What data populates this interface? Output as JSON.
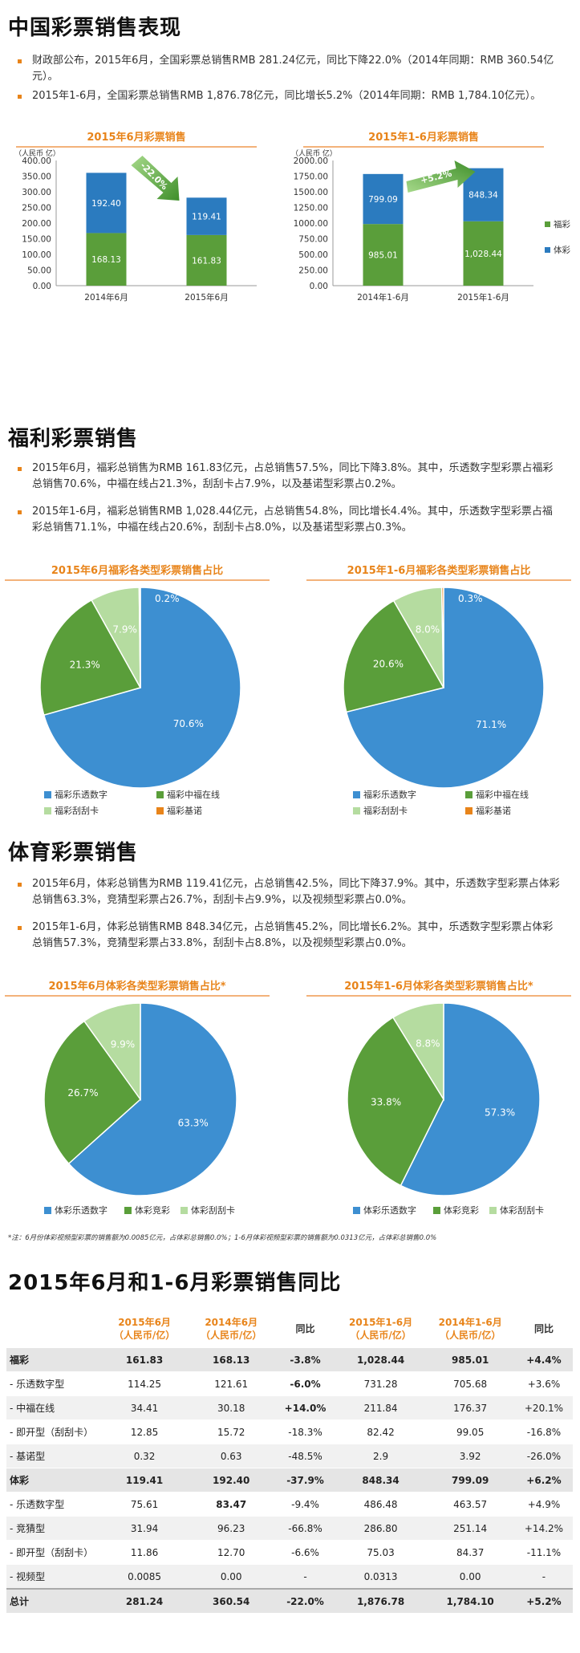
{
  "section1": {
    "title": "中国彩票销售表现",
    "bullets": [
      "财政部公布，2015年6月，全国彩票总销售RMB 281.24亿元，同比下降22.0%（2014年同期：RMB 360.54亿元）。",
      "2015年1-6月，全国彩票总销售RMB 1,876.78亿元，同比增长5.2%（2014年同期：RMB 1,784.10亿元）。"
    ]
  },
  "section2": {
    "title": "福利彩票销售",
    "bullets": [
      "2015年6月，福彩总销售为RMB 161.83亿元，占总销售57.5%，同比下降3.8%。其中，乐透数字型彩票占福彩总销售70.6%，中福在线占21.3%，刮刮卡占7.9%，以及基诺型彩票占0.2%。",
      "2015年1-6月，福彩总销售RMB 1,028.44亿元，占总销售54.8%，同比增长4.4%。其中，乐透数字型彩票占福彩总销售71.1%，中福在线占20.6%，刮刮卡占8.0%，以及基诺型彩票占0.3%。"
    ]
  },
  "section3": {
    "title": "体育彩票销售",
    "bullets": [
      "2015年6月，体彩总销售为RMB 119.41亿元，占总销售42.5%，同比下降37.9%。其中，乐透数字型彩票占体彩总销售63.3%，竞猜型彩票占26.7%，刮刮卡占9.9%，以及视频型彩票占0.0%。",
      "2015年1-6月，体彩总销售RMB 848.34亿元，占总销售45.2%，同比增长6.2%。其中，乐透数字型彩票占体彩总销售57.3%，竞猜型彩票占33.8%，刮刮卡占8.8%，以及视频型彩票占0.0%。"
    ],
    "note": "*注：6月份体彩视频型彩票的销售额为0.0085亿元，占体彩总销售0.0%；1-6月体彩视频型彩票的销售额为0.0313亿元，占体彩总销售0.0%"
  },
  "colors": {
    "welfare": "#5a9e3a",
    "sports": "#2b7bbf",
    "lotto": "#3d8fd1",
    "online": "#5a9e3a",
    "scratch": "#b5dca0",
    "keno": "#e8841a",
    "accent": "#e8841a"
  },
  "chart_data": [
    {
      "type": "bar",
      "stacked": true,
      "title": "2015年6月彩票销售",
      "ylabel": "（人民币 亿）",
      "categories": [
        "2014年6月",
        "2015年6月"
      ],
      "series": [
        {
          "name": "福彩",
          "values": [
            168.13,
            161.83
          ]
        },
        {
          "name": "体彩",
          "values": [
            192.4,
            119.41
          ]
        }
      ],
      "ylim": [
        0,
        400
      ],
      "yticks": [
        "0.00",
        "50.00",
        "100.00",
        "150.00",
        "200.00",
        "250.00",
        "300.00",
        "350.00",
        "400.00"
      ],
      "annotation": "-22.0%"
    },
    {
      "type": "bar",
      "stacked": true,
      "title": "2015年1-6月彩票销售",
      "ylabel": "（人民币 亿）",
      "categories": [
        "2014年1-6月",
        "2015年1-6月"
      ],
      "series": [
        {
          "name": "福彩",
          "values": [
            985.01,
            1028.44
          ]
        },
        {
          "name": "体彩",
          "values": [
            799.09,
            848.34
          ]
        }
      ],
      "ylim": [
        0,
        2000
      ],
      "yticks": [
        "0.00",
        "250.00",
        "500.00",
        "750.00",
        "1000.00",
        "1250.00",
        "1500.00",
        "1750.00",
        "2000.00"
      ],
      "labels": {
        "welfare": [
          "985.01",
          "1,028.44"
        ],
        "sports": [
          "799.09",
          "848.34"
        ]
      },
      "annotation": "+5.2%",
      "legend": [
        "福彩",
        "体彩"
      ]
    },
    {
      "type": "pie",
      "title": "2015年6月福彩各类型彩票销售占比",
      "slices": [
        {
          "name": "福彩乐透数字",
          "value": 70.6
        },
        {
          "name": "福彩中福在线",
          "value": 21.3
        },
        {
          "name": "福彩刮刮卡",
          "value": 7.9
        },
        {
          "name": "福彩基诺",
          "value": 0.2
        }
      ],
      "labels": [
        "70.6%",
        "21.3%",
        "7.9%",
        "0.2%"
      ]
    },
    {
      "type": "pie",
      "title": "2015年1-6月福彩各类型彩票销售占比",
      "slices": [
        {
          "name": "福彩乐透数字",
          "value": 71.1
        },
        {
          "name": "福彩中福在线",
          "value": 20.6
        },
        {
          "name": "福彩刮刮卡",
          "value": 8.0
        },
        {
          "name": "福彩基诺",
          "value": 0.3
        }
      ],
      "labels": [
        "71.1%",
        "20.6%",
        "8.0%",
        "0.3%"
      ]
    },
    {
      "type": "pie",
      "title": "2015年6月体彩各类型彩票销售占比*",
      "slices": [
        {
          "name": "体彩乐透数字",
          "value": 63.3
        },
        {
          "name": "体彩竞彩",
          "value": 26.7
        },
        {
          "name": "体彩刮刮卡",
          "value": 9.9
        }
      ],
      "labels": [
        "63.3%",
        "26.7%",
        "9.9%"
      ]
    },
    {
      "type": "pie",
      "title": "2015年1-6月体彩各类型彩票销售占比*",
      "slices": [
        {
          "name": "体彩乐透数字",
          "value": 57.3
        },
        {
          "name": "体彩竞彩",
          "value": 33.8
        },
        {
          "name": "体彩刮刮卡",
          "value": 8.8
        }
      ],
      "labels": [
        "57.3%",
        "33.8%",
        "8.8%"
      ]
    },
    {
      "type": "table",
      "title": "2015年6月和1-6月彩票销售同比",
      "headers": [
        "",
        "2015年6月\n（人民币/亿）",
        "2014年6月\n（人民币/亿）",
        "同比",
        "2015年1-6月\n（人民币/亿）",
        "2014年1-6月\n（人民币/亿）",
        "同比"
      ],
      "rows": [
        {
          "cls": "grp",
          "cells": [
            "福彩",
            "161.83",
            "168.13",
            "-3.8%",
            "1,028.44",
            "985.01",
            "+4.4%"
          ]
        },
        {
          "cls": "",
          "cells": [
            "- 乐透数字型",
            "114.25",
            "121.61",
            "-6.0%",
            "731.28",
            "705.68",
            "+3.6%"
          ]
        },
        {
          "cls": "alt",
          "cells": [
            "- 中福在线",
            "34.41",
            "30.18",
            "+14.0%",
            "211.84",
            "176.37",
            "+20.1%"
          ]
        },
        {
          "cls": "",
          "cells": [
            "- 即开型（刮刮卡）",
            "12.85",
            "15.72",
            "-18.3%",
            "82.42",
            "99.05",
            "-16.8%"
          ]
        },
        {
          "cls": "alt",
          "cells": [
            "- 基诺型",
            "0.32",
            "0.63",
            "-48.5%",
            "2.9",
            "3.92",
            "-26.0%"
          ]
        },
        {
          "cls": "grp",
          "cells": [
            "体彩",
            "119.41",
            "192.40",
            "-37.9%",
            "848.34",
            "799.09",
            "+6.2%"
          ]
        },
        {
          "cls": "",
          "cells": [
            "- 乐透数字型",
            "75.61",
            "83.47",
            "-9.4%",
            "486.48",
            "463.57",
            "+4.9%"
          ]
        },
        {
          "cls": "alt",
          "cells": [
            "- 竞猜型",
            "31.94",
            "96.23",
            "-66.8%",
            "286.80",
            "251.14",
            "+14.2%"
          ]
        },
        {
          "cls": "",
          "cells": [
            "- 即开型（刮刮卡）",
            "11.86",
            "12.70",
            "-6.6%",
            "75.03",
            "84.37",
            "-11.1%"
          ]
        },
        {
          "cls": "alt",
          "cells": [
            "- 视频型",
            "0.0085",
            "0.00",
            "-",
            "0.0313",
            "0.00",
            "-"
          ]
        },
        {
          "cls": "total",
          "cells": [
            "总计",
            "281.24",
            "360.54",
            "-22.0%",
            "1,876.78",
            "1,784.10",
            "+5.2%"
          ]
        }
      ]
    }
  ]
}
